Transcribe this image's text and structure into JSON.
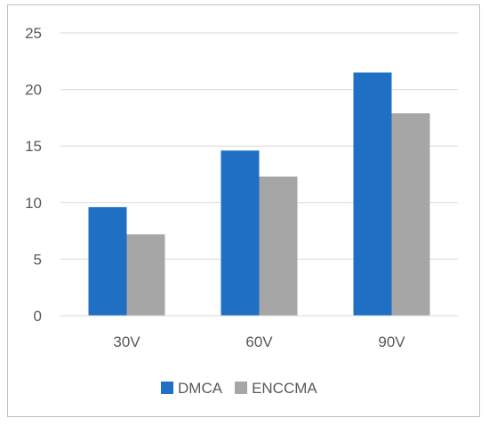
{
  "chart_data": {
    "type": "bar",
    "title": "",
    "xlabel": "",
    "ylabel": "",
    "categories": [
      "30V",
      "60V",
      "90V"
    ],
    "series": [
      {
        "name": "DMCA",
        "values": [
          9.6,
          14.6,
          21.5
        ],
        "color": "#1f6fc5"
      },
      {
        "name": "ENCCMA",
        "values": [
          7.2,
          12.3,
          17.9
        ],
        "color": "#a6a6a6"
      }
    ],
    "ylim": [
      0,
      25
    ],
    "yticks": [
      "0",
      "5",
      "10",
      "15",
      "20",
      "25"
    ],
    "grid": true,
    "legend_position": "bottom"
  },
  "colors": {
    "gridline": "#d9d9d9",
    "frame": "#bfbfbf",
    "text": "#595959"
  }
}
